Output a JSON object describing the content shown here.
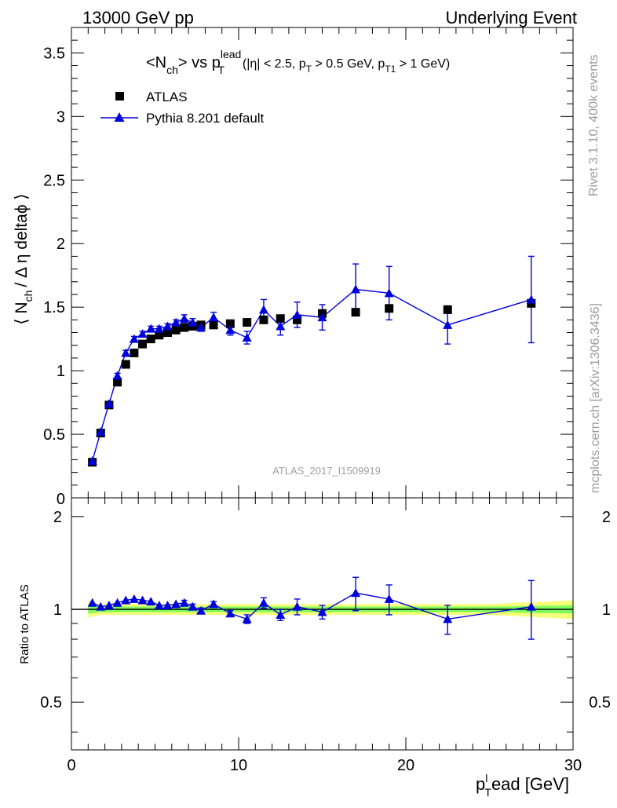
{
  "header": {
    "left": "13000 GeV pp",
    "right": "Underlying Event"
  },
  "side_labels": {
    "rivet": "Rivet 3.1.10,  400k events",
    "mcplots": "mcplots.cern.ch [arXiv:1306.3436]"
  },
  "watermark": "ATLAS_2017_I1509919",
  "title": {
    "n": "<N",
    "n_sub": "ch",
    "vs": "> vs p",
    "vs_sup": "lead",
    "vs_sub": "T",
    "cuts_a": "(|η| < 2.5, p",
    "cuts_a_sub": "T",
    "cuts_b": " > 0.5 GeV, p",
    "cuts_b_sub": "T1",
    "cuts_c": " > 1 GeV)"
  },
  "ylabel_main": {
    "a": "⟨ N",
    "sub": "ch",
    "b": "/ Δ η deltaϕ ⟩"
  },
  "ylabel_ratio": "Ratio to ATLAS",
  "xlabel": {
    "p": "p",
    "sup": "l",
    "sub": "T",
    "rest": "ead [GeV]"
  },
  "colors": {
    "data": "#000000",
    "mc": "#0000dd",
    "band_inner": "#7cfc5a",
    "band_outer": "#f5ff7a",
    "ref_line": "#000000"
  },
  "chart_data": [
    {
      "type": "scatter",
      "panel": "main",
      "xlim": [
        0,
        30
      ],
      "ylim": [
        0,
        3.7
      ],
      "xticks": [
        0,
        10,
        20,
        30
      ],
      "yticks": [
        0.5,
        1,
        1.5,
        2,
        2.5,
        3,
        3.5
      ],
      "ytick_labels": [
        "0.5",
        "1",
        "1.5",
        "2",
        "2.5",
        "3",
        "3.5"
      ],
      "y_zero_label": "0",
      "legend_placement": "top-left",
      "series": [
        {
          "name": "ATLAS",
          "marker": "square",
          "x": [
            1.25,
            1.75,
            2.25,
            2.75,
            3.25,
            3.75,
            4.25,
            4.75,
            5.25,
            5.75,
            6.25,
            6.75,
            7.25,
            7.75,
            8.5,
            9.5,
            10.5,
            11.5,
            12.5,
            13.5,
            15,
            17,
            19,
            22.5,
            27.5
          ],
          "y": [
            0.28,
            0.51,
            0.73,
            0.91,
            1.05,
            1.14,
            1.21,
            1.25,
            1.28,
            1.3,
            1.32,
            1.34,
            1.35,
            1.36,
            1.36,
            1.37,
            1.38,
            1.4,
            1.41,
            1.4,
            1.45,
            1.46,
            1.49,
            1.48,
            1.53
          ]
        },
        {
          "name": "Pythia 8.201 default",
          "marker": "triangle",
          "x": [
            1.25,
            1.75,
            2.25,
            2.75,
            3.25,
            3.75,
            4.25,
            4.75,
            5.25,
            5.75,
            6.25,
            6.75,
            7.25,
            7.75,
            8.5,
            9.5,
            10.5,
            11.5,
            12.5,
            13.5,
            15,
            17,
            19,
            22.5,
            27.5
          ],
          "y": [
            0.29,
            0.52,
            0.74,
            0.96,
            1.14,
            1.25,
            1.29,
            1.33,
            1.33,
            1.35,
            1.38,
            1.41,
            1.38,
            1.34,
            1.42,
            1.32,
            1.26,
            1.48,
            1.35,
            1.44,
            1.42,
            1.64,
            1.61,
            1.36,
            1.56
          ],
          "yerr": [
            0.01,
            0.01,
            0.01,
            0.02,
            0.02,
            0.02,
            0.02,
            0.02,
            0.02,
            0.02,
            0.02,
            0.03,
            0.03,
            0.03,
            0.04,
            0.04,
            0.05,
            0.08,
            0.07,
            0.1,
            0.1,
            0.2,
            0.21,
            0.15,
            0.34
          ]
        }
      ]
    },
    {
      "type": "scatter",
      "panel": "ratio",
      "xlim": [
        0,
        30
      ],
      "ylim": [
        0.35,
        2.3
      ],
      "xticks": [
        0,
        10,
        20,
        30
      ],
      "yticks": [
        0.5,
        1,
        2
      ],
      "ytick_labels": [
        "0.5",
        "1",
        "2"
      ],
      "reference_line": 1,
      "band": {
        "x": [
          1,
          1.75,
          25,
          30
        ],
        "inner": [
          0.03,
          0.02,
          0.02,
          0.03
        ],
        "outer": [
          0.06,
          0.04,
          0.04,
          0.07
        ]
      },
      "series": [
        {
          "name": "Pythia 8.201 default",
          "x": [
            1.25,
            1.75,
            2.25,
            2.75,
            3.25,
            3.75,
            4.25,
            4.75,
            5.25,
            5.75,
            6.25,
            6.75,
            7.25,
            7.75,
            8.5,
            9.5,
            10.5,
            11.5,
            12.5,
            13.5,
            15,
            17,
            19,
            22.5,
            27.5
          ],
          "y": [
            1.05,
            1.02,
            1.03,
            1.05,
            1.07,
            1.08,
            1.07,
            1.06,
            1.03,
            1.03,
            1.04,
            1.05,
            1.02,
            0.99,
            1.04,
            0.97,
            0.93,
            1.05,
            0.96,
            1.02,
            0.98,
            1.13,
            1.08,
            0.93,
            1.02
          ],
          "yerr": [
            0.01,
            0.01,
            0.01,
            0.01,
            0.01,
            0.01,
            0.01,
            0.01,
            0.01,
            0.01,
            0.01,
            0.02,
            0.02,
            0.02,
            0.02,
            0.02,
            0.03,
            0.04,
            0.04,
            0.06,
            0.05,
            0.14,
            0.12,
            0.1,
            0.22
          ]
        }
      ]
    }
  ]
}
